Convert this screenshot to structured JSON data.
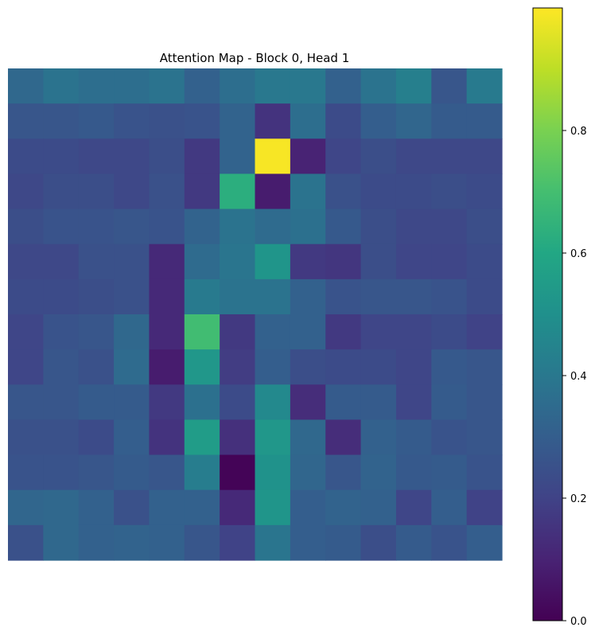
{
  "chart_data": {
    "type": "heatmap",
    "title": "Attention Map - Block 0, Head 1",
    "rows": 14,
    "cols": 14,
    "axes_visible": false,
    "colormap": "viridis",
    "colorbar": {
      "range": [
        0.0,
        1.0
      ],
      "placement": "right",
      "ticks": [
        0.0,
        0.2,
        0.4,
        0.6,
        0.8
      ],
      "tick_labels": [
        "0.0",
        "0.2",
        "0.4",
        "0.6",
        "0.8"
      ]
    },
    "values": [
      [
        0.34,
        0.38,
        0.36,
        0.36,
        0.38,
        0.31,
        0.36,
        0.4,
        0.4,
        0.31,
        0.38,
        0.43,
        0.27,
        0.41
      ],
      [
        0.27,
        0.27,
        0.28,
        0.26,
        0.25,
        0.26,
        0.32,
        0.15,
        0.36,
        0.23,
        0.3,
        0.33,
        0.29,
        0.29
      ],
      [
        0.23,
        0.23,
        0.22,
        0.22,
        0.24,
        0.17,
        0.32,
        0.99,
        0.1,
        0.21,
        0.24,
        0.22,
        0.22,
        0.22
      ],
      [
        0.22,
        0.24,
        0.24,
        0.22,
        0.25,
        0.17,
        0.63,
        0.08,
        0.38,
        0.25,
        0.23,
        0.23,
        0.24,
        0.23
      ],
      [
        0.24,
        0.26,
        0.26,
        0.27,
        0.26,
        0.32,
        0.38,
        0.35,
        0.37,
        0.28,
        0.24,
        0.22,
        0.22,
        0.24
      ],
      [
        0.22,
        0.22,
        0.25,
        0.25,
        0.12,
        0.35,
        0.39,
        0.52,
        0.17,
        0.16,
        0.24,
        0.21,
        0.21,
        0.23
      ],
      [
        0.23,
        0.23,
        0.24,
        0.25,
        0.12,
        0.41,
        0.38,
        0.38,
        0.31,
        0.26,
        0.27,
        0.27,
        0.26,
        0.23
      ],
      [
        0.21,
        0.26,
        0.27,
        0.34,
        0.12,
        0.69,
        0.17,
        0.31,
        0.31,
        0.17,
        0.21,
        0.21,
        0.23,
        0.2
      ],
      [
        0.21,
        0.27,
        0.25,
        0.35,
        0.08,
        0.53,
        0.18,
        0.3,
        0.24,
        0.23,
        0.23,
        0.21,
        0.28,
        0.27
      ],
      [
        0.27,
        0.27,
        0.29,
        0.29,
        0.17,
        0.37,
        0.23,
        0.47,
        0.13,
        0.29,
        0.29,
        0.21,
        0.29,
        0.27
      ],
      [
        0.25,
        0.25,
        0.23,
        0.3,
        0.15,
        0.55,
        0.14,
        0.53,
        0.34,
        0.13,
        0.31,
        0.29,
        0.26,
        0.27
      ],
      [
        0.26,
        0.26,
        0.27,
        0.29,
        0.27,
        0.42,
        0.01,
        0.51,
        0.33,
        0.27,
        0.32,
        0.28,
        0.29,
        0.26
      ],
      [
        0.33,
        0.34,
        0.31,
        0.25,
        0.31,
        0.31,
        0.12,
        0.52,
        0.3,
        0.32,
        0.31,
        0.21,
        0.3,
        0.2
      ],
      [
        0.25,
        0.34,
        0.31,
        0.32,
        0.31,
        0.27,
        0.2,
        0.39,
        0.3,
        0.29,
        0.24,
        0.29,
        0.26,
        0.3
      ]
    ]
  }
}
